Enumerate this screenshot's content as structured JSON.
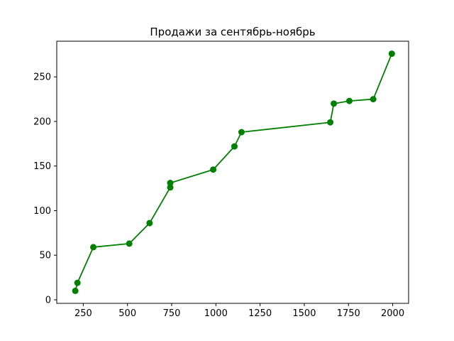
{
  "chart_data": {
    "type": "line",
    "title": "Продажи за сентябрь-ноябрь",
    "xlabel": "",
    "ylabel": "",
    "xlim": [
      100,
      2090
    ],
    "ylim": [
      -4,
      290
    ],
    "x_ticks": [
      250,
      500,
      750,
      1000,
      1250,
      1500,
      1750,
      2000
    ],
    "x_tick_labels": [
      "250",
      "500",
      "750",
      "1000",
      "1250",
      "1500",
      "1750",
      "2000"
    ],
    "y_ticks": [
      0,
      50,
      100,
      150,
      200,
      250
    ],
    "y_tick_labels": [
      "0",
      "50",
      "100",
      "150",
      "200",
      "250"
    ],
    "grid": false,
    "series": [
      {
        "color": "#008000",
        "marker": "circle",
        "x": [
          205,
          217,
          307,
          510,
          625,
          742,
          742,
          985,
          1105,
          1145,
          1647,
          1667,
          1755,
          1890,
          1995
        ],
        "y": [
          10,
          19,
          59,
          63,
          86,
          126,
          131,
          146,
          172,
          188,
          199,
          220,
          223,
          225,
          276
        ]
      }
    ]
  }
}
